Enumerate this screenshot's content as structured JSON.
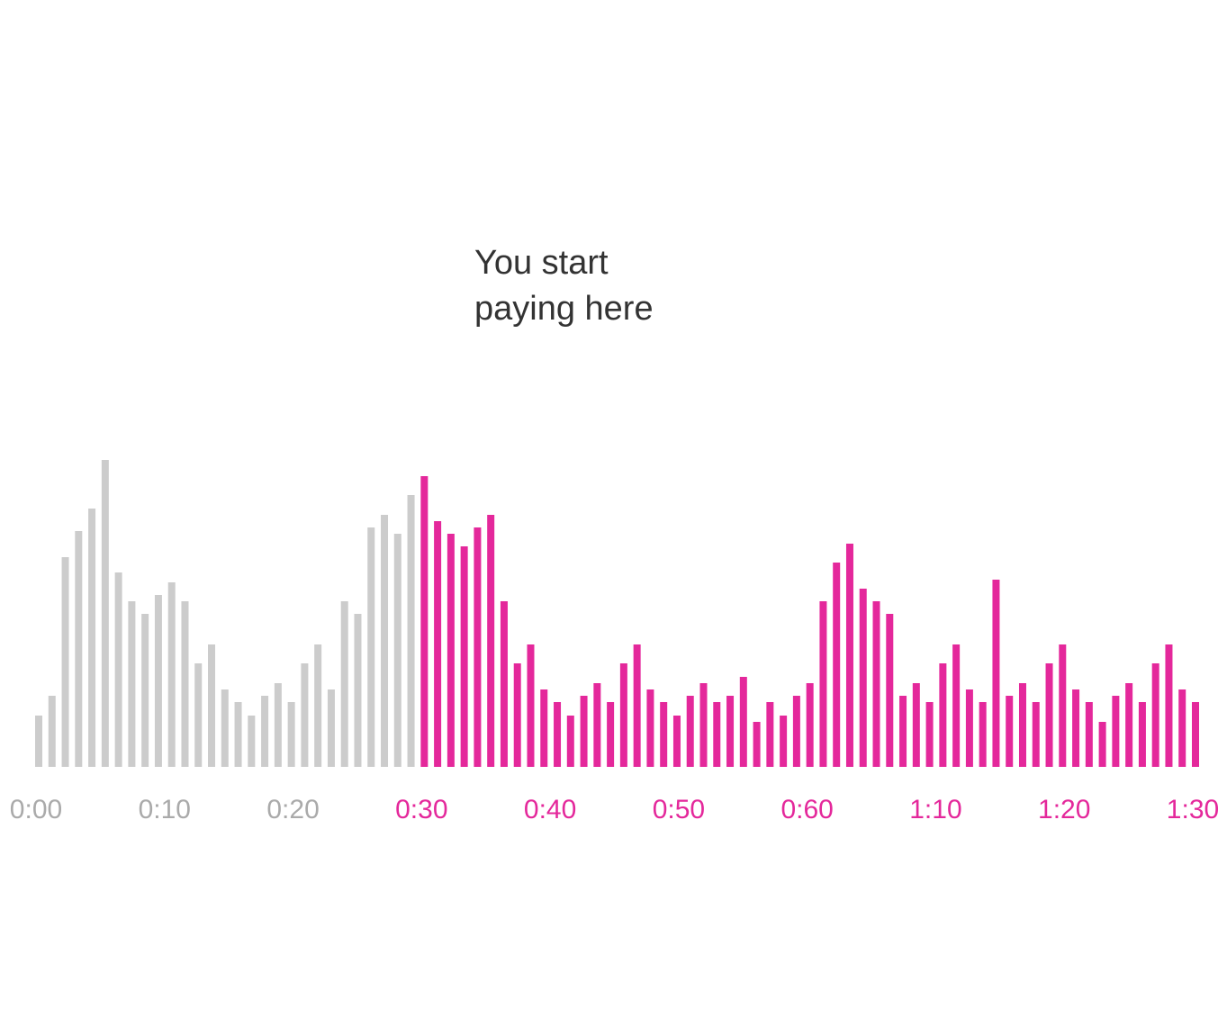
{
  "chart_data": {
    "type": "bar",
    "annotation": [
      "You start",
      "paying here"
    ],
    "xlim": [
      0,
      90
    ],
    "xticks": [
      {
        "value": 0,
        "label": "0:00"
      },
      {
        "value": 10,
        "label": "0:10"
      },
      {
        "value": 20,
        "label": "0:20"
      },
      {
        "value": 30,
        "label": "0:30"
      },
      {
        "value": 40,
        "label": "0:40"
      },
      {
        "value": 50,
        "label": "0:50"
      },
      {
        "value": 60,
        "label": "0:60"
      },
      {
        "value": 70,
        "label": "1:10"
      },
      {
        "value": 80,
        "label": "1:20"
      },
      {
        "value": 90,
        "label": "1:30"
      }
    ],
    "ylim": [
      0,
      360
    ],
    "series": [
      {
        "color": "#cccccc",
        "values": [
          57,
          79,
          233,
          262,
          287,
          341,
          216,
          184,
          170,
          191,
          205,
          184,
          115,
          136,
          86,
          72,
          57,
          79,
          93,
          72,
          115,
          136,
          86,
          184,
          170,
          266,
          280,
          259,
          302
        ]
      },
      {
        "color": "#e4289b",
        "values": [
          323,
          273,
          259,
          245,
          266,
          280,
          184,
          115,
          136,
          86,
          72,
          57,
          79,
          93,
          72,
          115,
          136,
          86,
          72,
          57,
          79,
          93,
          72,
          79,
          100,
          50,
          72,
          57,
          79,
          93,
          184,
          227,
          248,
          198,
          184,
          170,
          79,
          93,
          72,
          115,
          136,
          86,
          72,
          208,
          79,
          93,
          72,
          115,
          136,
          86,
          72,
          50,
          79,
          93,
          72,
          115,
          136,
          86,
          72
        ]
      }
    ]
  }
}
